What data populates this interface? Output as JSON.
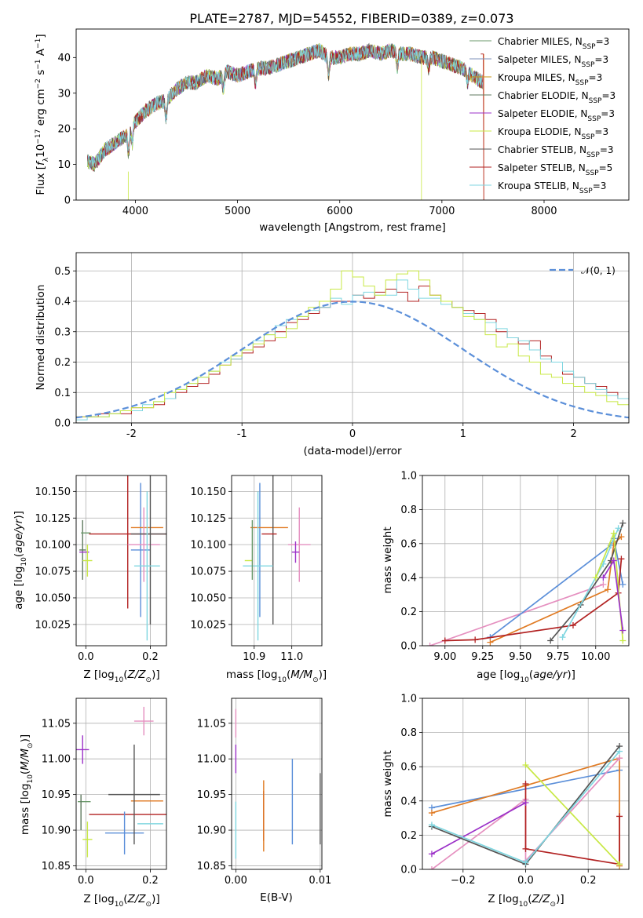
{
  "title": "PLATE=2787, MJD=54552, FIBERID=0389, z=0.073",
  "colors": {
    "chabrier_miles": "#6b9a6b",
    "salpeter_miles": "#7d92b8",
    "kroupa_miles": "#c8941a",
    "chabrier_elodie": "#5f7a5f",
    "salpeter_elodie": "#9b30c8",
    "kroupa_elodie": "#c8e845",
    "chabrier_stelib": "#555555",
    "salpeter_stelib": "#b22222",
    "kroupa_stelib": "#7fd6e0"
  },
  "chart_data": [
    {
      "type": "line",
      "name": "spectrum",
      "xlabel": "wavelength [Angstrom, rest frame]",
      "ylabel": "Flux [f_λ 10^-17 erg cm^-2 s^-1 A^-1]",
      "xlim": [
        3420,
        8830
      ],
      "ylim": [
        0,
        48
      ],
      "xticks": [
        4000,
        5000,
        6000,
        7000,
        8000
      ],
      "yticks": [
        0,
        10,
        20,
        30,
        40
      ],
      "grid": false,
      "legend": "top-right",
      "series_shape": {
        "x": [
          3530,
          3600,
          3700,
          3800,
          3900,
          4000,
          4100,
          4200,
          4300,
          4400,
          4500,
          4600,
          4700,
          4800,
          4900,
          5000,
          5100,
          5200,
          5300,
          5400,
          5500,
          5600,
          5700,
          5800,
          5900,
          6000,
          6100,
          6200,
          6300,
          6400,
          6500,
          6600,
          6700,
          6800,
          6900,
          7000,
          7100,
          7200,
          7300,
          7400
        ],
        "y": [
          11,
          10,
          14,
          16,
          18,
          22,
          25,
          27,
          28,
          31,
          33,
          33,
          35,
          34,
          36,
          35,
          36,
          37,
          37,
          38,
          39,
          40,
          41,
          42,
          40,
          40,
          41,
          41,
          42,
          41,
          42,
          41,
          41,
          40,
          40,
          39,
          38,
          37,
          35,
          33
        ]
      },
      "legend_entries": [
        {
          "label": "Chabrier MILES, N",
          "sub": "SSP",
          "suffix": "=3",
          "color": "#6b9a6b"
        },
        {
          "label": "Salpeter MILES, N",
          "sub": "SSP",
          "suffix": "=3",
          "color": "#7d92b8"
        },
        {
          "label": "Kroupa MILES, N",
          "sub": "SSP",
          "suffix": "=3",
          "color": "#c8941a"
        },
        {
          "label": "Chabrier ELODIE, N",
          "sub": "SSP",
          "suffix": "=3",
          "color": "#5f7a5f"
        },
        {
          "label": "Salpeter ELODIE, N",
          "sub": "SSP",
          "suffix": "=3",
          "color": "#9b30c8"
        },
        {
          "label": "Kroupa ELODIE, N",
          "sub": "SSP",
          "suffix": "=3",
          "color": "#c8e845"
        },
        {
          "label": "Chabrier STELIB, N",
          "sub": "SSP",
          "suffix": "=3",
          "color": "#555555"
        },
        {
          "label": "Salpeter STELIB, N",
          "sub": "SSP",
          "suffix": "=5",
          "color": "#b22222"
        },
        {
          "label": "Kroupa STELIB, N",
          "sub": "SSP",
          "suffix": "=3",
          "color": "#7fd6e0"
        }
      ]
    },
    {
      "type": "line",
      "name": "residual-histogram",
      "xlabel": "(data-model)/error",
      "ylabel": "Normed distribution",
      "xlim": [
        -2.5,
        2.5
      ],
      "ylim": [
        0,
        0.56
      ],
      "xticks": [
        -2,
        -1,
        0,
        1,
        2
      ],
      "yticks": [
        0.0,
        0.1,
        0.2,
        0.3,
        0.4,
        0.5
      ],
      "grid": true,
      "legend": "top-right",
      "legend_label": "𝒩(0, 1)",
      "gaussian": {
        "mu": 0,
        "sigma": 1,
        "color": "#5b8fd9"
      },
      "bin_width": 0.1,
      "series": [
        {
          "color": "#b22222",
          "values": [
            0.02,
            0.02,
            0.03,
            0.03,
            0.03,
            0.05,
            0.05,
            0.06,
            0.08,
            0.1,
            0.12,
            0.13,
            0.16,
            0.19,
            0.21,
            0.23,
            0.25,
            0.27,
            0.3,
            0.33,
            0.34,
            0.36,
            0.38,
            0.4,
            0.4,
            0.42,
            0.41,
            0.43,
            0.44,
            0.43,
            0.4,
            0.45,
            0.42,
            0.4,
            0.38,
            0.37,
            0.36,
            0.34,
            0.3,
            0.28,
            0.26,
            0.27,
            0.22,
            0.2,
            0.16,
            0.15,
            0.13,
            0.12,
            0.1,
            0.08
          ]
        },
        {
          "color": "#7fd6e0",
          "values": [
            0.01,
            0.02,
            0.02,
            0.03,
            0.04,
            0.04,
            0.06,
            0.07,
            0.08,
            0.11,
            0.13,
            0.15,
            0.17,
            0.2,
            0.21,
            0.24,
            0.27,
            0.29,
            0.32,
            0.34,
            0.35,
            0.37,
            0.38,
            0.41,
            0.39,
            0.42,
            0.43,
            0.42,
            0.42,
            0.47,
            0.44,
            0.41,
            0.41,
            0.39,
            0.38,
            0.36,
            0.34,
            0.33,
            0.31,
            0.28,
            0.27,
            0.24,
            0.21,
            0.2,
            0.17,
            0.15,
            0.13,
            0.11,
            0.09,
            0.08
          ]
        },
        {
          "color": "#c8e845",
          "values": [
            0.02,
            0.02,
            0.02,
            0.03,
            0.04,
            0.05,
            0.05,
            0.07,
            0.1,
            0.11,
            0.13,
            0.15,
            0.17,
            0.19,
            0.22,
            0.24,
            0.26,
            0.29,
            0.28,
            0.31,
            0.35,
            0.38,
            0.4,
            0.44,
            0.5,
            0.48,
            0.45,
            0.42,
            0.47,
            0.49,
            0.5,
            0.47,
            0.42,
            0.4,
            0.38,
            0.35,
            0.34,
            0.29,
            0.25,
            0.26,
            0.22,
            0.2,
            0.16,
            0.15,
            0.13,
            0.12,
            0.1,
            0.09,
            0.07,
            0.06
          ]
        }
      ]
    },
    {
      "type": "scatter",
      "name": "age-vs-Z",
      "xlabel": "Z [log10(Z/Z⊙)]",
      "ylabel": "age [log10(age/yr)]",
      "xlim": [
        -0.03,
        0.25
      ],
      "ylim": [
        10.005,
        10.165
      ],
      "xticks": [
        0.0,
        0.2
      ],
      "yticks": [
        10.025,
        10.05,
        10.075,
        10.1,
        10.125,
        10.15
      ],
      "grid": true
    },
    {
      "type": "scatter",
      "name": "age-vs-mass",
      "xlabel": "mass [log10(M/M⊙)]",
      "ylabel": "",
      "xlim": [
        10.84,
        11.08
      ],
      "ylim": [
        10.005,
        10.165
      ],
      "xticks": [
        10.9,
        11.0
      ],
      "yticks": [
        10.025,
        10.05,
        10.075,
        10.1,
        10.125,
        10.15
      ],
      "grid": true
    },
    {
      "type": "line",
      "name": "mass-weight-vs-age",
      "xlabel": "age [log10(age/yr)]",
      "ylabel": "mass weight",
      "xlim": [
        8.85,
        10.22
      ],
      "ylim": [
        0,
        1
      ],
      "xticks": [
        9.0,
        9.25,
        9.5,
        9.75,
        10.0
      ],
      "yticks": [
        0.0,
        0.2,
        0.4,
        0.6,
        0.8,
        1.0
      ],
      "grid": true
    },
    {
      "type": "scatter",
      "name": "mass-vs-Z",
      "xlabel": "Z [log10(Z/Z⊙)]",
      "ylabel": "mass [log10(M/M⊙)]",
      "xlim": [
        -0.03,
        0.25
      ],
      "ylim": [
        10.845,
        11.085
      ],
      "xticks": [
        0.0,
        0.2
      ],
      "yticks": [
        10.85,
        10.9,
        10.95,
        11.0,
        11.05
      ],
      "grid": true
    },
    {
      "type": "scatter",
      "name": "mass-vs-ebv",
      "xlabel": "E(B-V)",
      "ylabel": "",
      "xlim": [
        -0.0005,
        0.0102
      ],
      "ylim": [
        10.845,
        11.085
      ],
      "xticks": [
        0.0,
        0.01
      ],
      "yticks": [
        10.85,
        10.9,
        10.95,
        11.0,
        11.05
      ],
      "grid": true
    },
    {
      "type": "line",
      "name": "mass-weight-vs-Z",
      "xlabel": "Z [log10(Z/Z⊙)]",
      "ylabel": "mass weight",
      "xlim": [
        -0.33,
        0.33
      ],
      "ylim": [
        0,
        1
      ],
      "xticks": [
        -0.2,
        0.0,
        0.2
      ],
      "yticks": [
        0.0,
        0.2,
        0.4,
        0.6,
        0.8,
        1.0
      ],
      "grid": true
    }
  ],
  "errorbars_ageZ": [
    {
      "c": "#5f7a5f",
      "x": -0.01,
      "dx": 0.01,
      "y": 10.095,
      "dy": 0.028
    },
    {
      "c": "#6b9a6b",
      "x": 0.0,
      "dx": 0.015,
      "y": 10.111,
      "dy": 0.0
    },
    {
      "c": "#9b30c8",
      "x": -0.005,
      "dx": 0.015,
      "y": 10.093,
      "dy": 0.0
    },
    {
      "c": "#c8e845",
      "x": 0.005,
      "dx": 0.015,
      "y": 10.085,
      "dy": 0.015
    },
    {
      "c": "#b22222",
      "x": 0.13,
      "dx": 0.12,
      "y": 10.11,
      "dy": 0.07
    },
    {
      "c": "#5b8fd9",
      "x": 0.17,
      "dx": 0.03,
      "y": 10.095,
      "dy": 0.063
    },
    {
      "c": "#e07b24",
      "x": 0.19,
      "dx": 0.05,
      "y": 10.116,
      "dy": 0.0
    },
    {
      "c": "#e58fbf",
      "x": 0.18,
      "dx": 0.05,
      "y": 10.1,
      "dy": 0.035
    },
    {
      "c": "#555555",
      "x": 0.2,
      "dx": 0.06,
      "y": 10.11,
      "dy": 0.085
    },
    {
      "c": "#7fd6e0",
      "x": 0.19,
      "dx": 0.04,
      "y": 10.08,
      "dy": 0.07
    }
  ],
  "errorbars_ageM": [
    {
      "c": "#5b8fd9",
      "x": 10.915,
      "dx": 0.0,
      "y": 10.095,
      "dy": 0.063
    },
    {
      "c": "#e07b24",
      "x": 10.94,
      "dx": 0.05,
      "y": 10.116,
      "dy": 0.0
    },
    {
      "c": "#e58fbf",
      "x": 11.02,
      "dx": 0.03,
      "y": 10.1,
      "dy": 0.035
    },
    {
      "c": "#555555",
      "x": 10.95,
      "dx": 0.0,
      "y": 10.11,
      "dy": 0.085
    },
    {
      "c": "#7fd6e0",
      "x": 10.91,
      "dx": 0.04,
      "y": 10.08,
      "dy": 0.07
    },
    {
      "c": "#b22222",
      "x": 10.94,
      "dx": 0.02,
      "y": 10.11,
      "dy": 0.0
    },
    {
      "c": "#9b30c8",
      "x": 11.01,
      "dx": 0.01,
      "y": 10.093,
      "dy": 0.01
    },
    {
      "c": "#c8e845",
      "x": 10.885,
      "dx": 0.01,
      "y": 10.085,
      "dy": 0.0
    },
    {
      "c": "#6b9a6b",
      "x": 10.895,
      "dx": 0.0,
      "y": 10.095,
      "dy": 0.028
    }
  ],
  "errorbars_massZ": [
    {
      "c": "#9b30c8",
      "x": -0.01,
      "dx": 0.02,
      "y": 11.013,
      "dy": 0.02
    },
    {
      "c": "#6b9a6b",
      "x": -0.005,
      "dx": 0.02,
      "y": 10.94,
      "dy": 0.0
    },
    {
      "c": "#5f7a5f",
      "x": -0.015,
      "dx": 0.0,
      "y": 10.925,
      "dy": 0.025
    },
    {
      "c": "#c8e845",
      "x": 0.005,
      "dx": 0.015,
      "y": 10.887,
      "dy": 0.025
    },
    {
      "c": "#b22222",
      "x": 0.13,
      "dx": 0.12,
      "y": 10.922,
      "dy": 0.0
    },
    {
      "c": "#5b8fd9",
      "x": 0.12,
      "dx": 0.06,
      "y": 10.896,
      "dy": 0.03
    },
    {
      "c": "#e07b24",
      "x": 0.19,
      "dx": 0.05,
      "y": 10.941,
      "dy": 0.0
    },
    {
      "c": "#e58fbf",
      "x": 0.18,
      "dx": 0.03,
      "y": 11.053,
      "dy": 0.02
    },
    {
      "c": "#555555",
      "x": 0.15,
      "dx": 0.08,
      "y": 10.95,
      "dy": 0.07
    },
    {
      "c": "#7fd6e0",
      "x": 0.2,
      "dx": 0.04,
      "y": 10.909,
      "dy": 0.0
    }
  ],
  "errorbars_massE": [
    {
      "c": "#e58fbf",
      "x": 0.0,
      "y": 11.05,
      "dy": 0.02
    },
    {
      "c": "#9b30c8",
      "x": 0.0,
      "y": 11.0,
      "dy": 0.02
    },
    {
      "c": "#7fd6e0",
      "x": 0.0,
      "y": 10.9,
      "dy": 0.04
    },
    {
      "c": "#b22222",
      "x": 0.0033,
      "y": 10.92,
      "dy": 0.035
    },
    {
      "c": "#e07b24",
      "x": 0.0033,
      "y": 10.92,
      "dy": 0.05
    },
    {
      "c": "#5b8fd9",
      "x": 0.0067,
      "y": 10.94,
      "dy": 0.06
    },
    {
      "c": "#555555",
      "x": 0.01,
      "y": 10.93,
      "dy": 0.05
    }
  ],
  "weights_age": [
    {
      "c": "#e58fbf",
      "pts": [
        [
          8.9,
          0.0
        ],
        [
          10.05,
          0.36
        ]
      ]
    },
    {
      "c": "#5b8fd9",
      "pts": [
        [
          9.3,
          0.05
        ],
        [
          10.1,
          0.59
        ],
        [
          10.12,
          0.63
        ],
        [
          10.18,
          0.36
        ]
      ]
    },
    {
      "c": "#e07b24",
      "pts": [
        [
          9.3,
          0.02
        ],
        [
          10.08,
          0.33
        ],
        [
          10.12,
          0.6
        ],
        [
          10.17,
          0.64
        ]
      ]
    },
    {
      "c": "#b22222",
      "pts": [
        [
          9.0,
          0.03
        ],
        [
          9.2,
          0.035
        ],
        [
          9.85,
          0.12
        ],
        [
          10.15,
          0.31
        ],
        [
          10.17,
          0.51
        ]
      ]
    },
    {
      "c": "#555555",
      "pts": [
        [
          9.7,
          0.03
        ],
        [
          9.9,
          0.24
        ],
        [
          10.1,
          0.5
        ],
        [
          10.18,
          0.72
        ]
      ]
    },
    {
      "c": "#7fd6e0",
      "pts": [
        [
          9.78,
          0.05
        ],
        [
          10.05,
          0.48
        ],
        [
          10.15,
          0.69
        ]
      ]
    },
    {
      "c": "#c8e845",
      "pts": [
        [
          10.0,
          0.4
        ],
        [
          10.12,
          0.66
        ],
        [
          10.18,
          0.03
        ]
      ]
    },
    {
      "c": "#9b30c8",
      "pts": [
        [
          10.05,
          0.4
        ],
        [
          10.12,
          0.5
        ],
        [
          10.18,
          0.09
        ]
      ]
    }
  ],
  "weights_Z": [
    {
      "c": "#5b8fd9",
      "pts": [
        [
          -0.3,
          0.36
        ],
        [
          0.3,
          0.58
        ]
      ]
    },
    {
      "c": "#e07b24",
      "pts": [
        [
          -0.3,
          0.33
        ],
        [
          0.0,
          0.49
        ],
        [
          0.3,
          0.65
        ],
        [
          0.3,
          0.02
        ]
      ]
    },
    {
      "c": "#e58fbf",
      "pts": [
        [
          -0.3,
          0.0
        ],
        [
          0.0,
          0.41
        ],
        [
          0.0,
          0.05
        ],
        [
          0.3,
          0.65
        ]
      ]
    },
    {
      "c": "#b22222",
      "pts": [
        [
          0.0,
          0.5
        ],
        [
          0.0,
          0.12
        ],
        [
          0.3,
          0.03
        ],
        [
          0.3,
          0.31
        ]
      ]
    },
    {
      "c": "#c8e845",
      "pts": [
        [
          0.0,
          0.61
        ],
        [
          0.3,
          0.03
        ]
      ]
    },
    {
      "c": "#9b30c8",
      "pts": [
        [
          -0.3,
          0.09
        ],
        [
          0.0,
          0.39
        ]
      ]
    },
    {
      "c": "#555555",
      "pts": [
        [
          -0.3,
          0.25
        ],
        [
          0.0,
          0.03
        ],
        [
          0.3,
          0.72
        ]
      ]
    },
    {
      "c": "#7fd6e0",
      "pts": [
        [
          -0.3,
          0.26
        ],
        [
          0.0,
          0.04
        ],
        [
          0.3,
          0.69
        ]
      ]
    }
  ]
}
